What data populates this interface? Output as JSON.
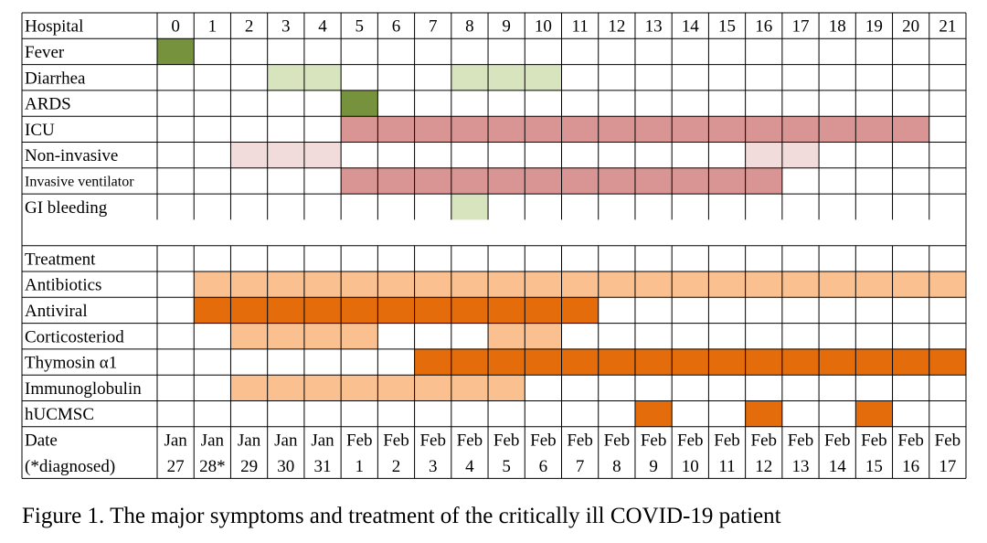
{
  "caption": "Figure 1. The major symptoms and treatment of the critically ill COVID-19 patient",
  "chart_data": {
    "type": "table",
    "header_label": "Hospital",
    "hospital_days": [
      "0",
      "1",
      "2",
      "3",
      "4",
      "5",
      "6",
      "7",
      "8",
      "9",
      "10",
      "11",
      "12",
      "13",
      "14",
      "15",
      "16",
      "17",
      "18",
      "19",
      "20",
      "21"
    ],
    "sections": [
      {
        "heading": "",
        "rows": [
          {
            "label": "Fever",
            "small": false,
            "color": "#76923c",
            "days": [
              0
            ]
          },
          {
            "label": "Diarrhea",
            "small": false,
            "color": "#d7e4bd",
            "days": [
              3,
              4,
              8,
              9,
              10
            ]
          },
          {
            "label": "ARDS",
            "small": false,
            "color": "#76923c",
            "days": [
              5
            ]
          },
          {
            "label": "ICU",
            "small": false,
            "color": "#d99594",
            "days": [
              5,
              6,
              7,
              8,
              9,
              10,
              11,
              12,
              13,
              14,
              15,
              16,
              17,
              18,
              19,
              20
            ]
          },
          {
            "label": "Non-invasive",
            "small": false,
            "color": "#f2dcdb",
            "days": [
              2,
              3,
              4,
              16,
              17
            ]
          },
          {
            "label": "Invasive ventilator",
            "small": true,
            "color": "#d99594",
            "days": [
              5,
              6,
              7,
              8,
              9,
              10,
              11,
              12,
              13,
              14,
              15,
              16
            ]
          },
          {
            "label": "GI bleeding",
            "small": false,
            "color": "#d7e4bd",
            "days": [
              8
            ]
          }
        ]
      },
      {
        "heading": "Treatment",
        "rows": [
          {
            "label": "Antibiotics",
            "small": false,
            "color": "#fac090",
            "days": [
              1,
              2,
              3,
              4,
              5,
              6,
              7,
              8,
              9,
              10,
              11,
              12,
              13,
              14,
              15,
              16,
              17,
              18,
              19,
              20,
              21
            ]
          },
          {
            "label": "Antiviral",
            "small": false,
            "color": "#e46c0a",
            "days": [
              1,
              2,
              3,
              4,
              5,
              6,
              7,
              8,
              9,
              10,
              11
            ]
          },
          {
            "label": "Corticosteriod",
            "small": false,
            "color": "#fac090",
            "days": [
              2,
              3,
              4,
              5,
              9,
              10
            ]
          },
          {
            "label": "Thymosin α1",
            "small": false,
            "color": "#e46c0a",
            "days": [
              7,
              8,
              9,
              10,
              11,
              12,
              13,
              14,
              15,
              16,
              17,
              18,
              19,
              20,
              21
            ]
          },
          {
            "label": "Immunoglobulin",
            "small": false,
            "color": "#fac090",
            "days": [
              2,
              3,
              4,
              5,
              6,
              7,
              8,
              9
            ]
          },
          {
            "label": "hUCMSC",
            "small": false,
            "color": "#e46c0a",
            "days": [
              13,
              16,
              19
            ]
          }
        ]
      }
    ],
    "date_label": [
      "Date",
      "(*diagnosed)"
    ],
    "dates": [
      [
        "Jan",
        "27"
      ],
      [
        "Jan",
        "28*"
      ],
      [
        "Jan",
        "29"
      ],
      [
        "Jan",
        "30"
      ],
      [
        "Jan",
        "31"
      ],
      [
        "Feb",
        "1"
      ],
      [
        "Feb",
        "2"
      ],
      [
        "Feb",
        "3"
      ],
      [
        "Feb",
        "4"
      ],
      [
        "Feb",
        "5"
      ],
      [
        "Feb",
        "6"
      ],
      [
        "Feb",
        "7"
      ],
      [
        "Feb",
        "8"
      ],
      [
        "Feb",
        "9"
      ],
      [
        "Feb",
        "10"
      ],
      [
        "Feb",
        "11"
      ],
      [
        "Feb",
        "12"
      ],
      [
        "Feb",
        "13"
      ],
      [
        "Feb",
        "14"
      ],
      [
        "Feb",
        "15"
      ],
      [
        "Feb",
        "16"
      ],
      [
        "Feb",
        "17"
      ]
    ]
  }
}
